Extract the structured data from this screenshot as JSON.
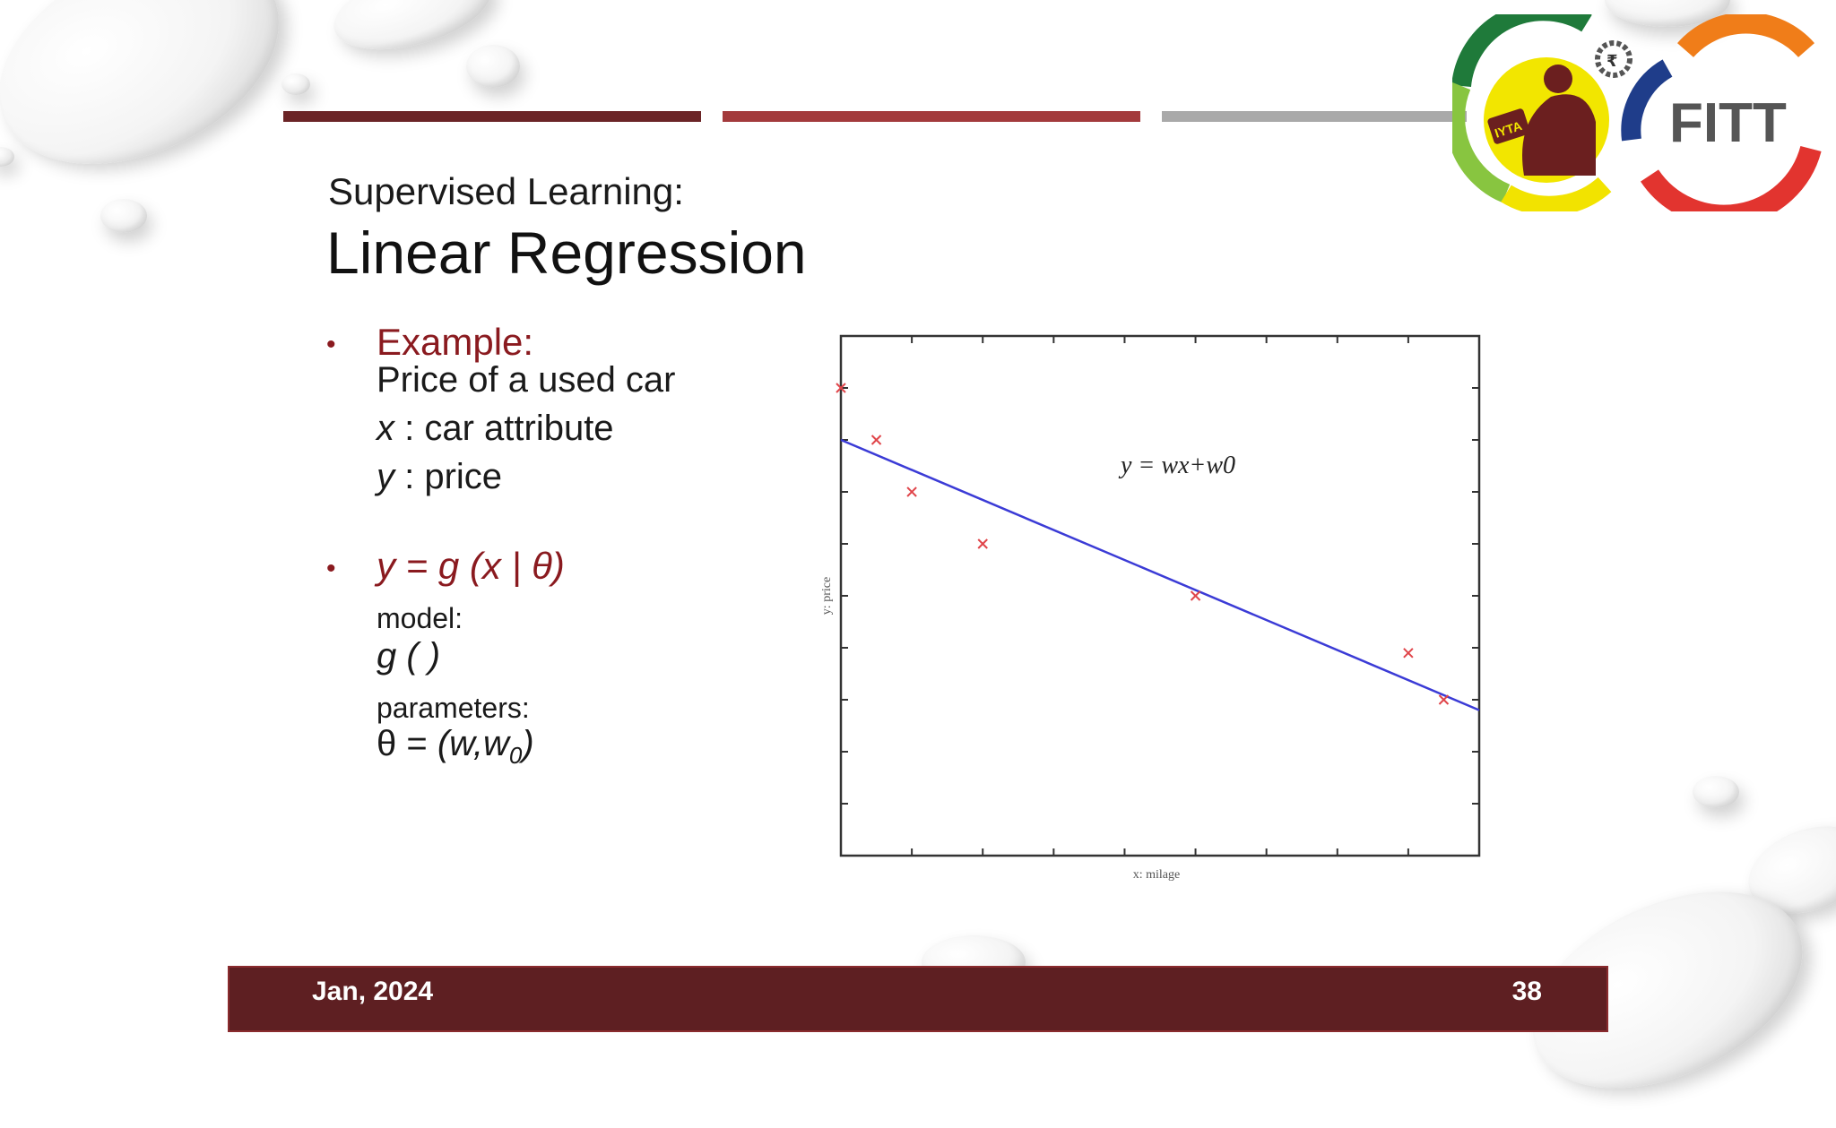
{
  "slide": {
    "subtitle": "Supervised Learning:",
    "title": "Linear Regression",
    "bullet_glyph": "•",
    "example_label": "Example:",
    "example_line": "Price of a used car",
    "x_var": "x",
    "x_desc": " : car attribute",
    "y_var": "y",
    "y_desc": " : price",
    "formula": "y = g (x | θ)",
    "model_label": "model:",
    "model_expr": "g ( )",
    "params_label": "parameters:",
    "params_theta": "θ = ",
    "params_expr": "(w,w",
    "params_sub": "0",
    "params_close": ")"
  },
  "footer": {
    "date": "Jan, 2024",
    "page": "38"
  },
  "logo": {
    "text": "FITT",
    "badge": "IYTA",
    "rupee": "₹"
  },
  "colors": {
    "bar1": "#6b2426",
    "bar2": "#a33a3c",
    "bar3": "#a9a9a9",
    "accent": "#8a1a1f",
    "footer": "#5e1f22",
    "line": "#3b3bd6",
    "point": "#e0454a"
  },
  "chart_data": {
    "type": "scatter",
    "xlabel": "x: milage",
    "ylabel": "y: price",
    "annotation": "y = wx+w0",
    "xlim": [
      0,
      9
    ],
    "ylim": [
      0,
      10
    ],
    "x_ticks": [
      1,
      2,
      3,
      4,
      5,
      6,
      7,
      8
    ],
    "y_ticks": [
      1,
      2,
      3,
      4,
      5,
      6,
      7,
      8,
      9
    ],
    "points": [
      {
        "x": 0.0,
        "y": 9.0
      },
      {
        "x": 0.5,
        "y": 8.0
      },
      {
        "x": 1.0,
        "y": 7.0
      },
      {
        "x": 2.0,
        "y": 6.0
      },
      {
        "x": 5.0,
        "y": 5.0
      },
      {
        "x": 8.0,
        "y": 3.9
      },
      {
        "x": 8.5,
        "y": 3.0
      }
    ],
    "fit_line": {
      "x": [
        0,
        9
      ],
      "y": [
        8.0,
        2.8
      ]
    }
  }
}
